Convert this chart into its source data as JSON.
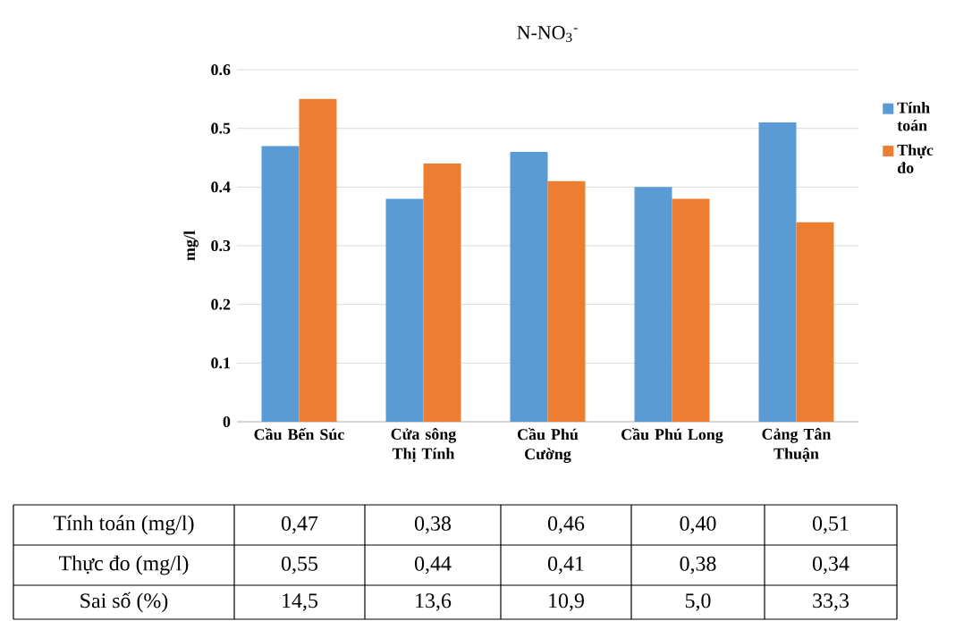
{
  "chart_data": {
    "type": "bar",
    "title": "N-NO$_{3}$$^{-}$",
    "ylabel": "mg/l",
    "categories": [
      "Cầu Bến Súc",
      "Cửa sông Thị Tính",
      "Cầu Phú Cường",
      "Cầu Phú Long",
      "Cảng Tân Thuận"
    ],
    "series": [
      {
        "name": "Tính toán",
        "color": "#5b9bd5",
        "values": [
          0.47,
          0.38,
          0.46,
          0.4,
          0.51
        ],
        "value_labels": [
          "0,47",
          "0,38",
          "0,46",
          "0,40",
          "0,51"
        ]
      },
      {
        "name": "Thực đo",
        "color": "#ed7d31",
        "values": [
          0.55,
          0.44,
          0.41,
          0.38,
          0.34
        ],
        "value_labels": [
          "0,55",
          "0,44",
          "0,41",
          "0,38",
          "0,34"
        ]
      }
    ],
    "ylim": [
      0,
      0.6
    ],
    "yticks": [
      0,
      0.1,
      0.2,
      0.3,
      0.4,
      0.5,
      0.6
    ],
    "grid": "y",
    "legend": "right",
    "annotations": [
      "Tính toán (mg/l)",
      "Thực đo (mg/l)",
      "Sai số (%)",
      "14,5",
      "13,6",
      "10,9",
      "5,0",
      "33,3"
    ]
  }
}
